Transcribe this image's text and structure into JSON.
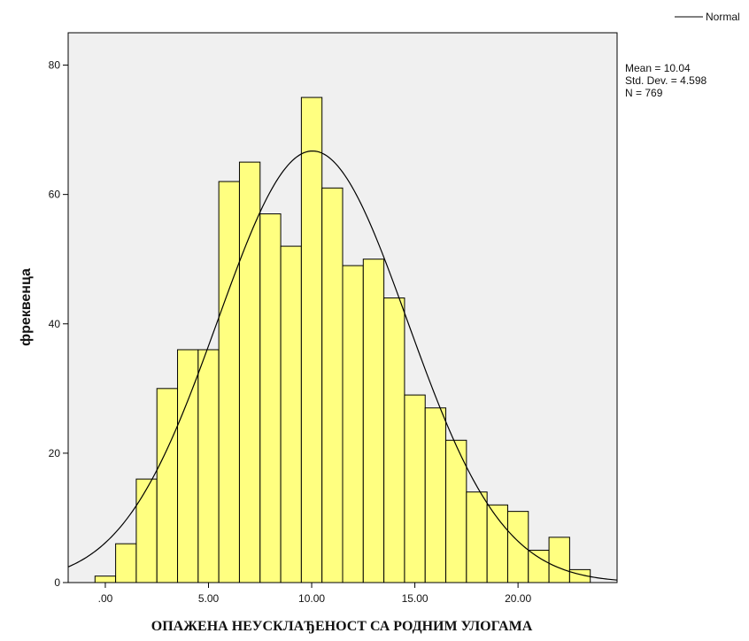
{
  "chart_data": {
    "type": "bar",
    "subtype": "histogram",
    "xlabel": "ОПАЖЕНА НЕУСКЛАЂЕНОСТ СА РОДНИМ УЛОГАМА",
    "ylabel": "фреквенца",
    "bin_width": 1,
    "bin_centers": [
      0,
      1,
      2,
      3,
      4,
      5,
      6,
      7,
      8,
      9,
      10,
      11,
      12,
      13,
      14,
      15,
      16,
      17,
      18,
      19,
      20,
      21,
      22,
      23
    ],
    "values": [
      1,
      6,
      16,
      30,
      36,
      36,
      62,
      65,
      57,
      52,
      75,
      61,
      49,
      50,
      44,
      29,
      27,
      22,
      14,
      12,
      11,
      5,
      7,
      2
    ],
    "xlim": [
      -1.8,
      24.8
    ],
    "ylim": [
      0,
      85
    ],
    "x_ticks": [
      0,
      5,
      10,
      15,
      20
    ],
    "x_tick_labels": [
      ".00",
      "5.00",
      "10.00",
      "15.00",
      "20.00"
    ],
    "y_ticks": [
      0,
      20,
      40,
      60,
      80
    ],
    "y_tick_labels": [
      "0",
      "20",
      "40",
      "60",
      "80"
    ],
    "normal_curve": {
      "mean": 10.04,
      "std_dev": 4.598,
      "n": 769
    },
    "legend": {
      "label": "Normal",
      "placement": "top-right"
    },
    "stats_text": [
      "Mean = 10.04",
      "Std. Dev. = 4.598",
      "N = 769"
    ],
    "grid": false,
    "colors": {
      "plot_background": "#f0f0f0",
      "bar_fill": "#ffff80",
      "bar_stroke": "#000000",
      "curve": "#000000"
    }
  }
}
